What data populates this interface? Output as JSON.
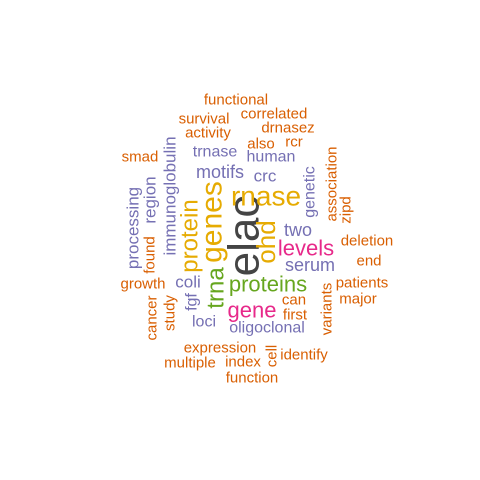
{
  "colors": {
    "orange": "#D95F02",
    "purple": "#7570B3",
    "gold": "#E6AB02",
    "green": "#66A61E",
    "magenta": "#E7298A",
    "dark": "#444444"
  },
  "words": [
    {
      "id": "elac",
      "text": "elac",
      "color": "dark",
      "rotated": true
    },
    {
      "id": "rnase",
      "text": "rnase",
      "color": "gold",
      "rotated": false
    },
    {
      "id": "genes",
      "text": "genes",
      "color": "gold",
      "rotated": true
    },
    {
      "id": "protein",
      "text": "protein",
      "color": "gold",
      "rotated": true
    },
    {
      "id": "ohd",
      "text": "ohd",
      "color": "gold",
      "rotated": true
    },
    {
      "id": "levels",
      "text": "levels",
      "color": "magenta",
      "rotated": false
    },
    {
      "id": "proteins",
      "text": "proteins",
      "color": "green",
      "rotated": false
    },
    {
      "id": "trna",
      "text": "trna",
      "color": "green",
      "rotated": true
    },
    {
      "id": "gene",
      "text": "gene",
      "color": "magenta",
      "rotated": false
    },
    {
      "id": "two",
      "text": "two",
      "color": "purple",
      "rotated": false
    },
    {
      "id": "serum",
      "text": "serum",
      "color": "purple",
      "rotated": false
    },
    {
      "id": "motifs",
      "text": "motifs",
      "color": "purple",
      "rotated": false
    },
    {
      "id": "crc",
      "text": "crc",
      "color": "purple",
      "rotated": false
    },
    {
      "id": "human",
      "text": "human",
      "color": "purple",
      "rotated": false
    },
    {
      "id": "trnase",
      "text": "trnase",
      "color": "purple",
      "rotated": false
    },
    {
      "id": "immunoglobulin",
      "text": "immunoglobulin",
      "color": "purple",
      "rotated": true
    },
    {
      "id": "region",
      "text": "region",
      "color": "purple",
      "rotated": true
    },
    {
      "id": "processing",
      "text": "processing",
      "color": "purple",
      "rotated": true
    },
    {
      "id": "genetic",
      "text": "genetic",
      "color": "purple",
      "rotated": true
    },
    {
      "id": "coli",
      "text": "coli",
      "color": "purple",
      "rotated": false
    },
    {
      "id": "fgf",
      "text": "fgf",
      "color": "purple",
      "rotated": true
    },
    {
      "id": "loci",
      "text": "loci",
      "color": "purple",
      "rotated": false
    },
    {
      "id": "oligoclonal",
      "text": "oligoclonal",
      "color": "purple",
      "rotated": false
    },
    {
      "id": "functional",
      "text": "functional",
      "color": "orange",
      "rotated": false
    },
    {
      "id": "correlated",
      "text": "correlated",
      "color": "orange",
      "rotated": false
    },
    {
      "id": "survival",
      "text": "survival",
      "color": "orange",
      "rotated": false
    },
    {
      "id": "drnasez",
      "text": "drnasez",
      "color": "orange",
      "rotated": false
    },
    {
      "id": "activity",
      "text": "activity",
      "color": "orange",
      "rotated": false
    },
    {
      "id": "rcr",
      "text": "rcr",
      "color": "orange",
      "rotated": false
    },
    {
      "id": "also",
      "text": "also",
      "color": "orange",
      "rotated": false
    },
    {
      "id": "smad",
      "text": "smad",
      "color": "orange",
      "rotated": false
    },
    {
      "id": "association",
      "text": "association",
      "color": "orange",
      "rotated": true
    },
    {
      "id": "zipd",
      "text": "zipd",
      "color": "orange",
      "rotated": true
    },
    {
      "id": "deletion",
      "text": "deletion",
      "color": "orange",
      "rotated": false
    },
    {
      "id": "end",
      "text": "end",
      "color": "orange",
      "rotated": false
    },
    {
      "id": "found",
      "text": "found",
      "color": "orange",
      "rotated": true
    },
    {
      "id": "patients",
      "text": "patients",
      "color": "orange",
      "rotated": false
    },
    {
      "id": "major",
      "text": "major",
      "color": "orange",
      "rotated": false
    },
    {
      "id": "growth",
      "text": "growth",
      "color": "orange",
      "rotated": false
    },
    {
      "id": "can",
      "text": "can",
      "color": "orange",
      "rotated": false
    },
    {
      "id": "first",
      "text": "first",
      "color": "orange",
      "rotated": false
    },
    {
      "id": "variants",
      "text": "variants",
      "color": "orange",
      "rotated": true
    },
    {
      "id": "cancer",
      "text": "cancer",
      "color": "orange",
      "rotated": true
    },
    {
      "id": "study",
      "text": "study",
      "color": "orange",
      "rotated": true
    },
    {
      "id": "expression",
      "text": "expression",
      "color": "orange",
      "rotated": false
    },
    {
      "id": "cell",
      "text": "cell",
      "color": "orange",
      "rotated": true
    },
    {
      "id": "identify",
      "text": "identify",
      "color": "orange",
      "rotated": false
    },
    {
      "id": "multiple",
      "text": "multiple",
      "color": "orange",
      "rotated": false
    },
    {
      "id": "index",
      "text": "index",
      "color": "orange",
      "rotated": false
    },
    {
      "id": "function",
      "text": "function",
      "color": "orange",
      "rotated": false
    }
  ]
}
